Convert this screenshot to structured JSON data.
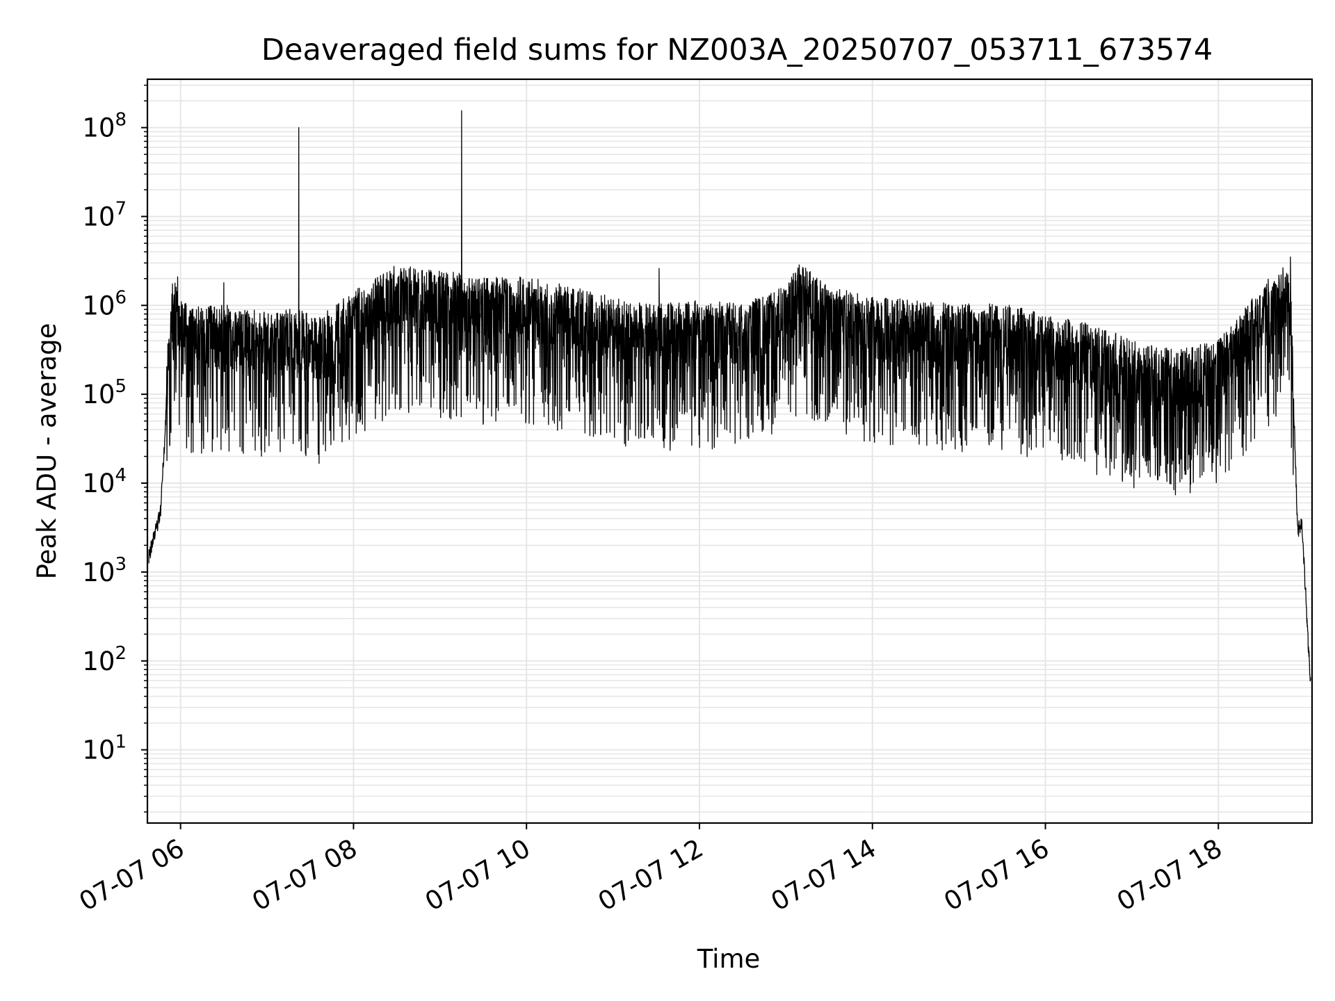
{
  "chart_data": {
    "type": "line",
    "title": "Deaveraged field sums for NZ003A_20250707_053711_673574",
    "xlabel": "Time",
    "ylabel": "Peak ADU - average",
    "y_scale": "log",
    "ylim": [
      1.5,
      350000000
    ],
    "xlim": [
      "2025-07-07 05:37",
      "2025-07-07 19:05"
    ],
    "grid": {
      "major": true,
      "minor": true,
      "color": "#e6e6e6"
    },
    "line_color": "#000000",
    "x_ticks": [
      "07-07 06",
      "07-07 08",
      "07-07 10",
      "07-07 12",
      "07-07 14",
      "07-07 16",
      "07-07 18"
    ],
    "y_ticks": [
      "10^1",
      "10^2",
      "10^3",
      "10^4",
      "10^5",
      "10^6",
      "10^7",
      "10^8"
    ],
    "y_tick_base": "10",
    "y_tick_exps": [
      "1",
      "2",
      "3",
      "4",
      "5",
      "6",
      "7",
      "8"
    ],
    "series": [
      {
        "x": [
          "2025-07-07 05:38",
          "2025-07-07 05:43",
          "2025-07-07 05:46",
          "2025-07-07 05:49",
          "2025-07-07 05:52",
          "2025-07-07 05:55",
          "2025-07-07 05:58",
          "2025-07-07 06:05",
          "2025-07-07 06:30",
          "2025-07-07 07:00",
          "2025-07-07 07:20",
          "2025-07-07 07:35",
          "2025-07-07 08:00",
          "2025-07-07 08:30",
          "2025-07-07 09:00",
          "2025-07-07 09:30",
          "2025-07-07 10:00",
          "2025-07-07 10:30",
          "2025-07-07 11:00",
          "2025-07-07 11:30",
          "2025-07-07 12:00",
          "2025-07-07 12:30",
          "2025-07-07 13:00",
          "2025-07-07 13:10",
          "2025-07-07 13:30",
          "2025-07-07 14:00",
          "2025-07-07 14:30",
          "2025-07-07 15:00",
          "2025-07-07 15:30",
          "2025-07-07 16:00",
          "2025-07-07 16:30",
          "2025-07-07 17:00",
          "2025-07-07 17:30",
          "2025-07-07 18:00",
          "2025-07-07 18:20",
          "2025-07-07 18:45",
          "2025-07-07 18:50",
          "2025-07-07 18:55",
          "2025-07-07 18:58",
          "2025-07-07 19:04"
        ],
        "y": [
          1500,
          3000,
          4500,
          30000,
          500000,
          1000000,
          800000,
          450000,
          500000,
          400000,
          450000,
          350000,
          700000,
          1400000,
          1200000,
          1000000,
          1000000,
          800000,
          600000,
          500000,
          550000,
          500000,
          800000,
          1500000,
          800000,
          600000,
          550000,
          500000,
          500000,
          400000,
          300000,
          200000,
          150000,
          200000,
          500000,
          1500000,
          1000000,
          3000,
          3500,
          50
        ]
      }
    ],
    "spikes": [
      {
        "x": "2025-07-07 07:22",
        "y": 100000000
      },
      {
        "x": "2025-07-07 09:15",
        "y": 155000000
      },
      {
        "x": "2025-07-07 05:58",
        "y": 2100000
      },
      {
        "x": "2025-07-07 06:30",
        "y": 1800000
      },
      {
        "x": "2025-07-07 11:32",
        "y": 2600000
      },
      {
        "x": "2025-07-07 13:12",
        "y": 2600000
      },
      {
        "x": "2025-07-07 18:50",
        "y": 3500000
      }
    ]
  }
}
